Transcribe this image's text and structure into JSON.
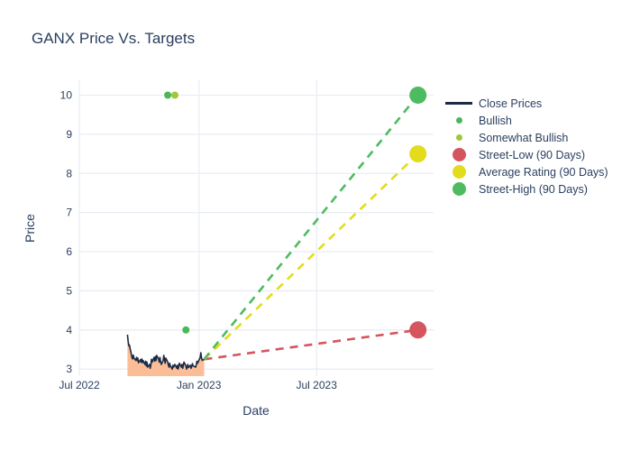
{
  "colors": {
    "title_text": "#2a3f5f",
    "axis_text": "#2a3f5f",
    "grid": "#e9edf5",
    "background": "#ffffff",
    "close_line": "#1c2b45",
    "close_fill": "#fbbd96",
    "bullish": "#4bb858",
    "somewhat_bullish": "#9fc83c",
    "street_low": "#d4555e",
    "average_rating": "#e3dc1d",
    "street_high": "#4dbb60"
  },
  "chart_data": {
    "type": "line",
    "title": "GANX Price Vs. Targets",
    "xlabel": "Date",
    "ylabel": "Price",
    "grid": true,
    "legend_position": "right",
    "x_ticks": [
      "Jul 2022",
      "Jan 2023",
      "Jul 2023"
    ],
    "x_tick_dates": [
      "2022-07-01",
      "2023-01-01",
      "2023-07-01"
    ],
    "y_ticks": [
      3,
      4,
      5,
      6,
      7,
      8,
      9,
      10
    ],
    "x_range": [
      "2022-07-01",
      "2023-12-28"
    ],
    "y_range": [
      2.82,
      10.38
    ],
    "close_prices": {
      "name": "Close Prices",
      "dates": [
        "2022-09-13",
        "2022-09-14",
        "2022-09-15",
        "2022-09-16",
        "2022-09-19",
        "2022-09-20",
        "2022-09-21",
        "2022-09-22",
        "2022-09-23",
        "2022-09-26",
        "2022-09-27",
        "2022-09-28",
        "2022-09-29",
        "2022-09-30",
        "2022-10-03",
        "2022-10-04",
        "2022-10-05",
        "2022-10-06",
        "2022-10-07",
        "2022-10-10",
        "2022-10-11",
        "2022-10-12",
        "2022-10-13",
        "2022-10-14",
        "2022-10-17",
        "2022-10-18",
        "2022-10-19",
        "2022-10-20",
        "2022-10-21",
        "2022-10-24",
        "2022-10-25",
        "2022-10-26",
        "2022-10-27",
        "2022-10-28",
        "2022-10-31",
        "2022-11-01",
        "2022-11-02",
        "2022-11-03",
        "2022-11-04",
        "2022-11-07",
        "2022-11-08",
        "2022-11-09",
        "2022-11-10",
        "2022-11-11",
        "2022-11-14",
        "2022-11-15",
        "2022-11-16",
        "2022-11-17",
        "2022-11-18",
        "2022-11-21",
        "2022-11-22",
        "2022-11-23",
        "2022-11-25",
        "2022-11-28",
        "2022-11-29",
        "2022-11-30",
        "2022-12-01",
        "2022-12-02",
        "2022-12-05",
        "2022-12-06",
        "2022-12-07",
        "2022-12-08",
        "2022-12-09",
        "2022-12-12",
        "2022-12-13",
        "2022-12-14",
        "2022-12-15",
        "2022-12-16",
        "2022-12-19",
        "2022-12-20",
        "2022-12-21",
        "2022-12-22",
        "2022-12-23",
        "2022-12-27",
        "2022-12-28",
        "2022-12-29",
        "2022-12-30",
        "2023-01-03",
        "2023-01-04",
        "2023-01-05",
        "2023-01-06",
        "2023-01-09"
      ],
      "values": [
        3.88,
        3.72,
        3.6,
        3.62,
        3.38,
        3.3,
        3.26,
        3.36,
        3.28,
        3.22,
        3.3,
        3.22,
        3.28,
        3.16,
        3.24,
        3.18,
        3.26,
        3.16,
        3.22,
        3.12,
        3.2,
        3.08,
        3.18,
        3.05,
        3.12,
        3.02,
        3.1,
        3.25,
        3.18,
        3.3,
        3.2,
        3.32,
        3.22,
        3.35,
        3.25,
        3.18,
        3.3,
        3.2,
        3.12,
        3.22,
        3.35,
        3.25,
        3.15,
        3.28,
        3.18,
        3.1,
        3.05,
        3.15,
        3.08,
        3.0,
        3.1,
        3.05,
        3.12,
        3.02,
        3.1,
        3.0,
        3.08,
        3.15,
        3.05,
        3.12,
        3.02,
        3.1,
        3.18,
        3.08,
        3.0,
        3.06,
        3.12,
        3.04,
        3.1,
        3.02,
        3.08,
        3.14,
        3.08,
        3.05,
        3.12,
        3.2,
        3.15,
        3.3,
        3.42,
        3.28,
        3.22,
        3.25
      ]
    },
    "analyst_ratings": [
      {
        "date": "2022-11-14",
        "price_target": 10.0,
        "rating": "Bullish"
      },
      {
        "date": "2022-11-25",
        "price_target": 10.0,
        "rating": "Somewhat Bullish"
      },
      {
        "date": "2022-12-12",
        "price_target": 4.0,
        "rating": "Bullish"
      }
    ],
    "targets_90_days": {
      "date": "2023-12-04",
      "series": [
        {
          "key": "street-low",
          "name": "Street-Low (90 Days)",
          "value": 4.0,
          "color_key": "street_low"
        },
        {
          "key": "average-rating",
          "name": "Average Rating (90 Days)",
          "value": 8.5,
          "color_key": "average_rating"
        },
        {
          "key": "street-high",
          "name": "Street-High (90 Days)",
          "value": 10.0,
          "color_key": "street_high"
        }
      ]
    }
  },
  "legend": {
    "items": [
      {
        "label": "Close Prices",
        "symbol": "line",
        "color_key": "close_line"
      },
      {
        "label": "Bullish",
        "symbol": "dot-small",
        "color_key": "bullish"
      },
      {
        "label": "Somewhat Bullish",
        "symbol": "dot-small",
        "color_key": "somewhat_bullish"
      },
      {
        "label": "Street-Low (90 Days)",
        "symbol": "dot-large",
        "color_key": "street_low"
      },
      {
        "label": "Average Rating (90 Days)",
        "symbol": "dot-large",
        "color_key": "average_rating"
      },
      {
        "label": "Street-High (90 Days)",
        "symbol": "dot-large",
        "color_key": "street_high"
      }
    ]
  }
}
